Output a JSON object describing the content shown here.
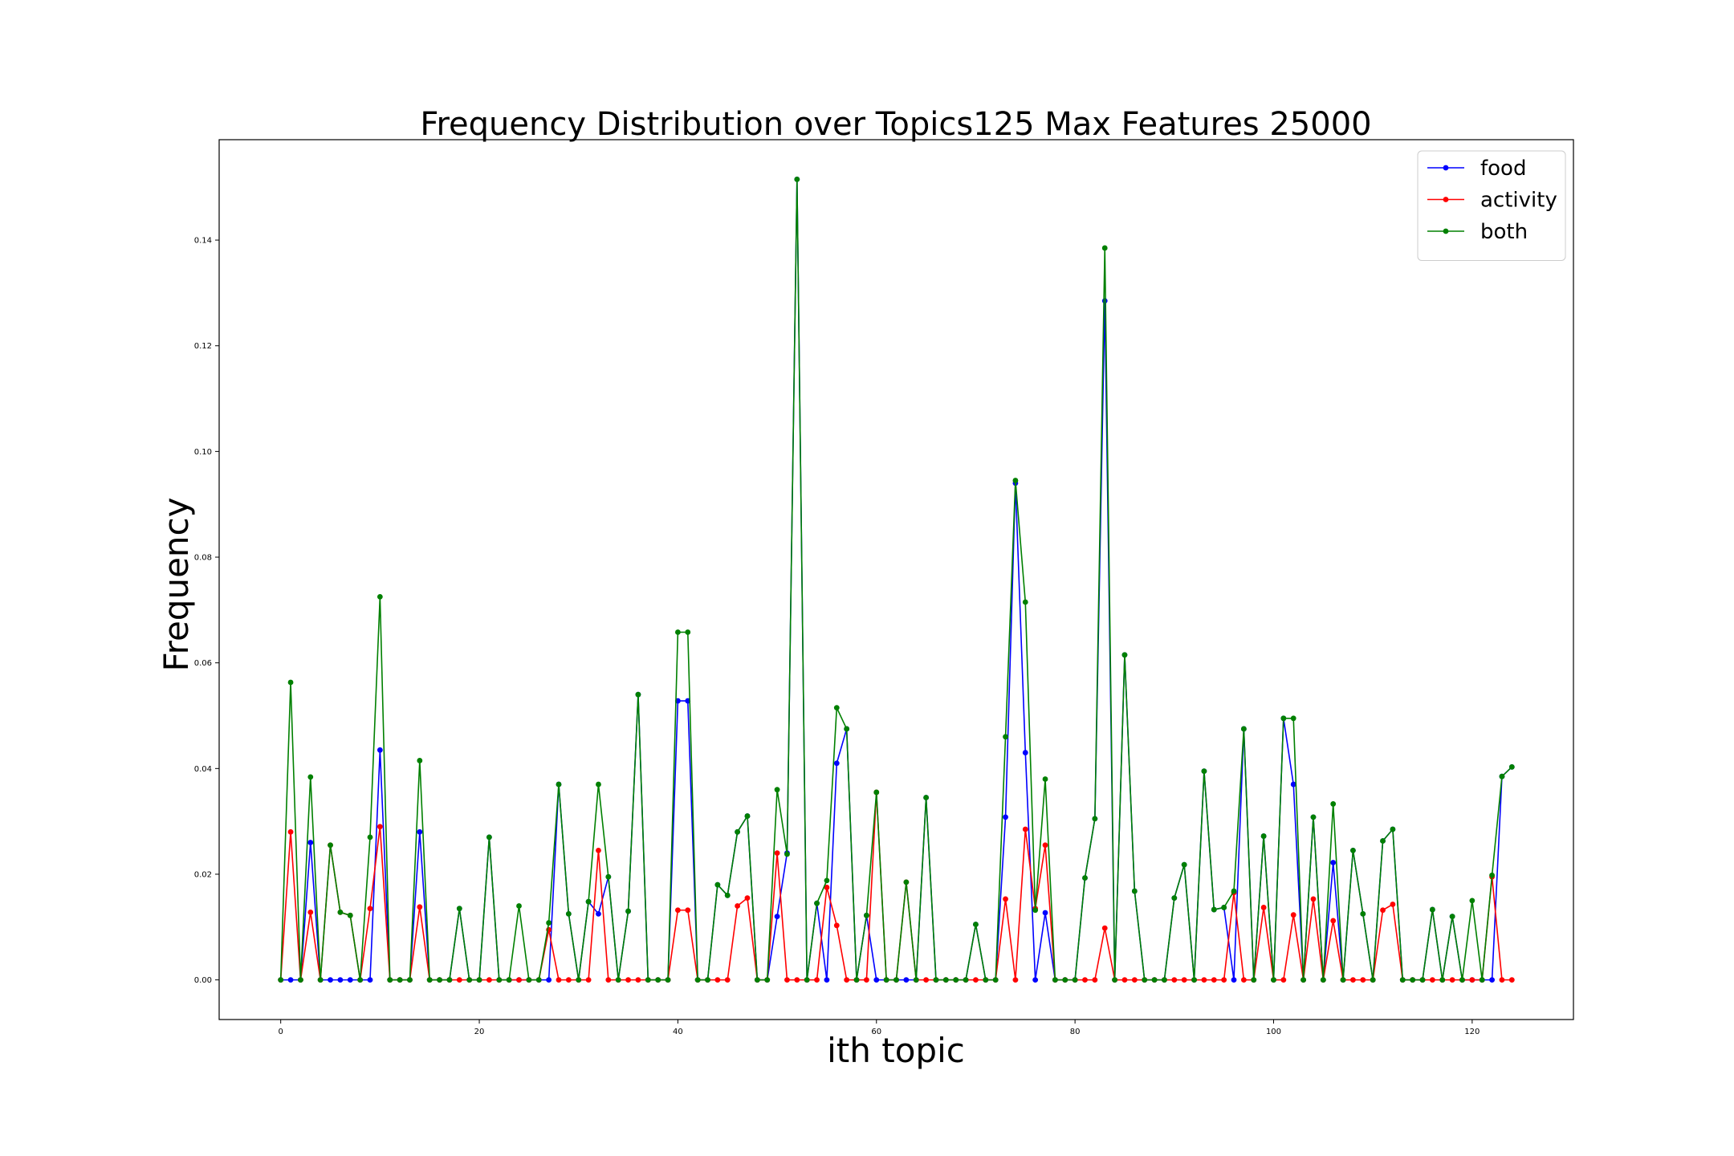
{
  "chart_data": {
    "type": "line",
    "title": "Frequency Distribution over Topics125 Max Features 25000",
    "xlabel": "ith topic",
    "ylabel": "Frequency",
    "xlim": [
      -6.2,
      130.2
    ],
    "ylim": [
      -0.0075,
      0.159
    ],
    "x_ticks": [
      0,
      20,
      40,
      60,
      80,
      100,
      120
    ],
    "y_ticks": [
      0.0,
      0.02,
      0.04,
      0.06,
      0.08,
      0.1,
      0.12,
      0.14
    ],
    "y_tick_labels": [
      "0.00",
      "0.02",
      "0.04",
      "0.06",
      "0.08",
      "0.10",
      "0.12",
      "0.14"
    ],
    "grid": false,
    "legend": "top-right",
    "series": [
      {
        "name": "food",
        "color": "#0000ff",
        "values": [
          0,
          0,
          0,
          0.026,
          0,
          0,
          0,
          0,
          0,
          0,
          0.0435,
          0,
          0,
          0,
          0.028,
          0,
          0,
          0,
          0.0135,
          0,
          0,
          0.027,
          0,
          0,
          0,
          0,
          0,
          0,
          0.037,
          0.0125,
          0,
          0.0148,
          0.0125,
          0.0195,
          0,
          0.013,
          0.054,
          0,
          0,
          0,
          0.0528,
          0.0528,
          0,
          0,
          0.018,
          0.016,
          0.028,
          0.031,
          0,
          0,
          0.012,
          0.024,
          0.1515,
          0,
          0.0145,
          0,
          0.041,
          0.0475,
          0,
          0.0122,
          0,
          0,
          0,
          0,
          0,
          0.0345,
          0,
          0,
          0,
          0,
          0.0105,
          0,
          0,
          0.0308,
          0.094,
          0.043,
          0,
          0.0127,
          0,
          0,
          0,
          0.0193,
          0.0305,
          0.1285,
          0,
          0.0615,
          0.0168,
          0,
          0,
          0,
          0.0155,
          0.0218,
          0,
          0.0395,
          0.0133,
          0.0137,
          0,
          0.0475,
          0,
          0.0272,
          0,
          0.0495,
          0.037,
          0,
          0.0308,
          0,
          0.0222,
          0,
          0.0245,
          0.0125,
          0,
          0.0263,
          0.0285,
          0,
          0,
          0,
          0.0133,
          0,
          0.012,
          0,
          0,
          0,
          0,
          0.0385,
          0.0403
        ]
      },
      {
        "name": "activity",
        "color": "#ff0000",
        "values": [
          0,
          0.028,
          0,
          0.0128,
          0,
          0.0255,
          0.0128,
          0.0122,
          0,
          0.0135,
          0.029,
          0,
          0,
          0,
          0.0138,
          0,
          0,
          0,
          0,
          0,
          0,
          0,
          0,
          0,
          0,
          0,
          0,
          0.0095,
          0,
          0,
          0,
          0,
          0.0245,
          0,
          0,
          0,
          0,
          0,
          0,
          0,
          0.0132,
          0.0132,
          0,
          0,
          0,
          0,
          0.014,
          0.0155,
          0,
          0,
          0.024,
          0,
          0,
          0,
          0,
          0.0175,
          0.0103,
          0,
          0,
          0,
          0.0355,
          0,
          0,
          0.0185,
          0,
          0,
          0,
          0,
          0,
          0,
          0,
          0,
          0,
          0.0153,
          0,
          0.0285,
          0.0135,
          0.0255,
          0,
          0,
          0,
          0,
          0,
          0.0098,
          0,
          0,
          0,
          0,
          0,
          0,
          0,
          0,
          0,
          0,
          0,
          0,
          0.0165,
          0,
          0,
          0.0137,
          0,
          0,
          0.0123,
          0,
          0.0153,
          0,
          0.0112,
          0,
          0,
          0,
          0,
          0.0132,
          0.0143,
          0,
          0,
          0,
          0,
          0,
          0,
          0,
          0,
          0,
          0.0195,
          0,
          0
        ]
      },
      {
        "name": "both",
        "color": "#008000",
        "values": [
          0,
          0.0563,
          0,
          0.0384,
          0,
          0.0255,
          0.0128,
          0.0122,
          0,
          0.027,
          0.0725,
          0,
          0,
          0,
          0.0415,
          0,
          0,
          0,
          0.0135,
          0,
          0,
          0.027,
          0,
          0,
          0.014,
          0,
          0,
          0.0108,
          0.037,
          0.0125,
          0,
          0.0148,
          0.037,
          0.0195,
          0,
          0.013,
          0.054,
          0,
          0,
          0,
          0.0658,
          0.0658,
          0,
          0,
          0.018,
          0.016,
          0.028,
          0.031,
          0,
          0,
          0.036,
          0.0238,
          0.1515,
          0,
          0.0145,
          0.0188,
          0.0515,
          0.0475,
          0,
          0.0122,
          0.0355,
          0,
          0,
          0.0185,
          0,
          0.0345,
          0,
          0,
          0,
          0,
          0.0105,
          0,
          0,
          0.046,
          0.0945,
          0.0715,
          0.0132,
          0.038,
          0,
          0,
          0,
          0.0193,
          0.0305,
          0.1385,
          0,
          0.0615,
          0.0168,
          0,
          0,
          0,
          0.0155,
          0.0218,
          0,
          0.0395,
          0.0133,
          0.0137,
          0.0168,
          0.0475,
          0,
          0.0272,
          0,
          0.0495,
          0.0495,
          0,
          0.0308,
          0,
          0.0333,
          0,
          0.0245,
          0.0125,
          0,
          0.0263,
          0.0285,
          0,
          0,
          0,
          0.0133,
          0,
          0.012,
          0,
          0.015,
          0,
          0.0198,
          0.0385,
          0.0403
        ]
      }
    ]
  }
}
